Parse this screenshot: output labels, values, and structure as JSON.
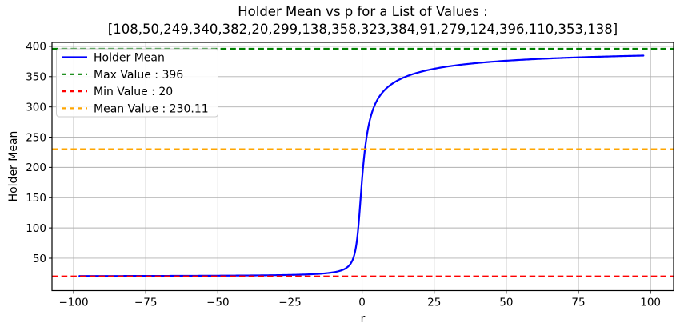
{
  "chart_data": {
    "type": "line",
    "title": "Holder Mean vs p for a List of Values :",
    "subtitle": "[108,50,249,340,382,20,299,138,358,323,384,91,279,124,396,110,353,138]",
    "xlabel": "r",
    "ylabel": "Holder Mean",
    "values_list": [
      108,
      50,
      249,
      340,
      382,
      20,
      299,
      138,
      358,
      323,
      384,
      91,
      279,
      124,
      396,
      110,
      353,
      138
    ],
    "x_range": [
      -98,
      98
    ],
    "xlim": [
      -107.5,
      108.0
    ],
    "ylim": [
      -3.5,
      406.5
    ],
    "xticks": [
      -100,
      -75,
      -50,
      -25,
      0,
      25,
      50,
      75,
      100
    ],
    "yticks": [
      50,
      100,
      150,
      200,
      250,
      300,
      350,
      400
    ],
    "grid": true,
    "legend_position": "upper left",
    "series": [
      {
        "name": "Holder Mean",
        "type": "curve",
        "color": "#0000ff",
        "linestyle": "solid",
        "sample_points": [
          [
            -98,
            20.61
          ],
          [
            -75,
            20.79
          ],
          [
            -50,
            21.19
          ],
          [
            -25,
            22.45
          ],
          [
            -10,
            26.7
          ],
          [
            -5,
            35.58
          ],
          [
            -3,
            50.8
          ],
          [
            -2,
            72.1
          ],
          [
            -1,
            118.2
          ],
          [
            -0.5,
            149.8
          ],
          [
            0,
            180.8
          ],
          [
            0.5,
            207.9
          ],
          [
            1,
            230.11
          ],
          [
            2,
            262.5
          ],
          [
            3,
            284.2
          ],
          [
            5,
            308.8
          ],
          [
            10,
            336.7
          ],
          [
            25,
            362.8
          ],
          [
            50,
            376.2
          ],
          [
            75,
            381.8
          ],
          [
            98,
            384.8
          ]
        ]
      },
      {
        "name": "Max Value : 396",
        "type": "hline",
        "y": 396,
        "color": "#008000",
        "linestyle": "dashed"
      },
      {
        "name": "Min Value : 20",
        "type": "hline",
        "y": 20,
        "color": "#ff0000",
        "linestyle": "dashed"
      },
      {
        "name": "Mean Value : 230.11",
        "type": "hline",
        "y": 230.11,
        "color": "#ffa500",
        "linestyle": "dashed"
      }
    ],
    "stats": {
      "max": 396,
      "min": 20,
      "mean": 230.11
    },
    "colors": {
      "curve": "#0000ff",
      "max_line": "#008000",
      "min_line": "#ff0000",
      "mean_line": "#ffa500",
      "grid": "#b0b0b0",
      "spine": "#000000",
      "legend_border": "#cccccc",
      "background": "#ffffff"
    }
  }
}
